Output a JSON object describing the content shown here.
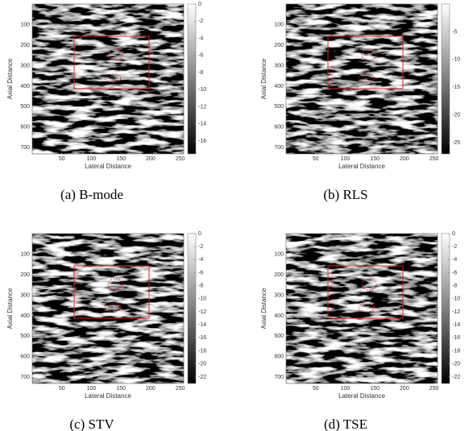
{
  "chart_data": [
    {
      "type": "image",
      "caption": "(a) B-mode",
      "xlabel": "Lateral Distance",
      "ylabel": "Axial Distance",
      "xlim": [
        0,
        256
      ],
      "ylim": [
        0,
        730
      ],
      "xticks": [
        50,
        100,
        150,
        200,
        250
      ],
      "yticks": [
        100,
        200,
        300,
        400,
        500,
        600,
        700
      ],
      "colorbar": {
        "lim": [
          -17.5,
          0
        ],
        "ticks": [
          0,
          -2,
          -4,
          -6,
          -8,
          -10,
          -12,
          -14,
          -16
        ]
      }
    },
    {
      "type": "image",
      "caption": "(b) RLS",
      "xlabel": "Lateral Distance",
      "ylabel": "Axial Distance",
      "xlim": [
        0,
        256
      ],
      "ylim": [
        0,
        730
      ],
      "xticks": [
        50,
        100,
        150,
        200,
        250
      ],
      "yticks": [
        100,
        200,
        300,
        400,
        500,
        600,
        700
      ],
      "colorbar": {
        "lim": [
          -27,
          0
        ],
        "ticks": [
          -5,
          -10,
          -15,
          -20,
          -25
        ]
      }
    },
    {
      "type": "image",
      "caption": "(c) STV",
      "xlabel": "Lateral Distance",
      "ylabel": "Axial Distance",
      "xlim": [
        0,
        256
      ],
      "ylim": [
        0,
        730
      ],
      "xticks": [
        50,
        100,
        150,
        200,
        250
      ],
      "yticks": [
        100,
        200,
        300,
        400,
        500,
        600,
        700
      ],
      "colorbar": {
        "lim": [
          -23,
          0
        ],
        "ticks": [
          0,
          -2,
          -4,
          -6,
          -8,
          -10,
          -12,
          -14,
          -16,
          -18,
          -20,
          -22
        ]
      }
    },
    {
      "type": "image",
      "caption": "(d) TSE",
      "xlabel": "Lateral Distance",
      "ylabel": "Axial Distance",
      "xlim": [
        0,
        256
      ],
      "ylim": [
        0,
        730
      ],
      "xticks": [
        50,
        100,
        150,
        200,
        250
      ],
      "yticks": [
        100,
        200,
        300,
        400,
        500,
        600,
        700
      ],
      "colorbar": {
        "lim": [
          -23,
          0
        ],
        "ticks": [
          0,
          -2,
          -4,
          -6,
          -8,
          -10,
          -12,
          -14,
          -16,
          -18,
          -20,
          -22
        ]
      }
    }
  ]
}
